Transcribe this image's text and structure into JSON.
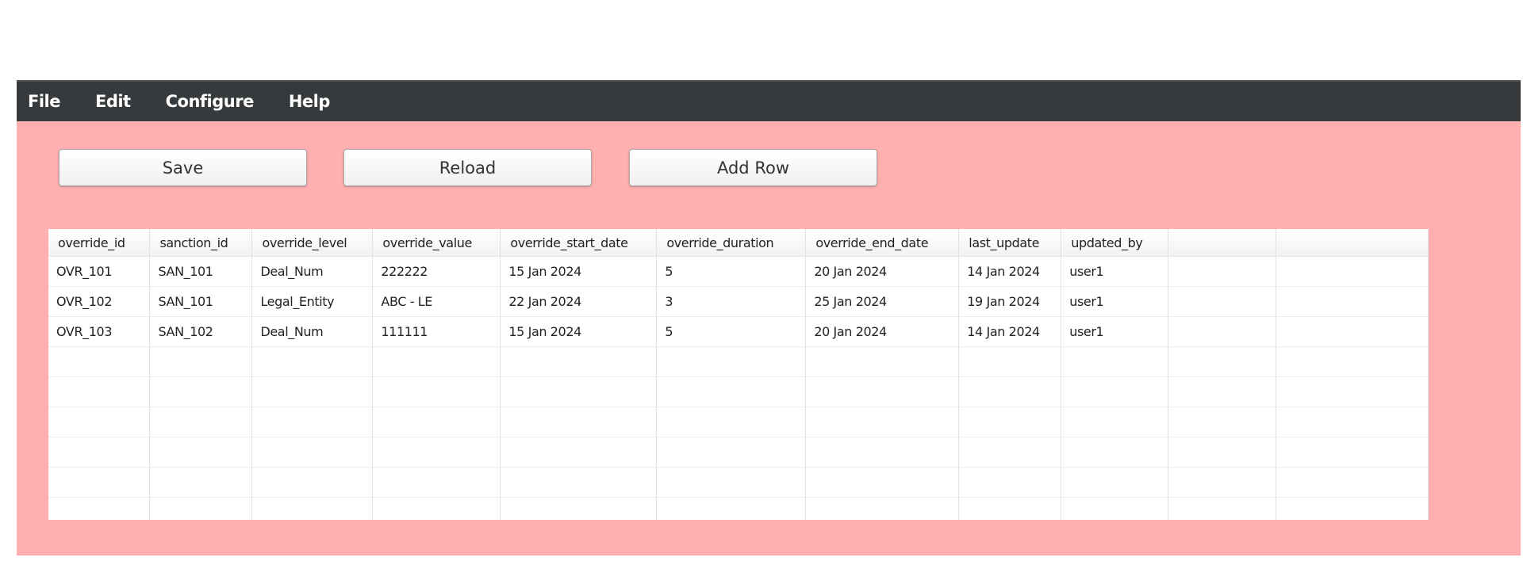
{
  "menu": [
    "File",
    "Edit",
    "Configure",
    "Help"
  ],
  "toolbar": {
    "save_label": "Save",
    "reload_label": "Reload",
    "add_row_label": "Add Row"
  },
  "table": {
    "columns": [
      "override_id",
      "sanction_id",
      "override_level",
      "override_value",
      "override_start_date",
      "override_duration",
      "override_end_date",
      "last_update",
      "updated_by",
      "",
      ""
    ],
    "rows": [
      [
        "OVR_101",
        "SAN_101",
        "Deal_Num",
        "222222",
        "15 Jan 2024",
        "5",
        "20 Jan 2024",
        "14 Jan 2024",
        "user1",
        "",
        ""
      ],
      [
        "OVR_102",
        "SAN_101",
        "Legal_Entity",
        "ABC - LE",
        "22 Jan 2024",
        "3",
        "25 Jan 2024",
        "19 Jan 2024",
        "user1",
        "",
        ""
      ],
      [
        "OVR_103",
        "SAN_102",
        "Deal_Num",
        "111111",
        "15 Jan 2024",
        "5",
        "20 Jan 2024",
        "14 Jan 2024",
        "user1",
        "",
        ""
      ]
    ],
    "empty_rows": 6
  },
  "colors": {
    "background": "#ffafaf",
    "menubar": "#363a3c"
  }
}
